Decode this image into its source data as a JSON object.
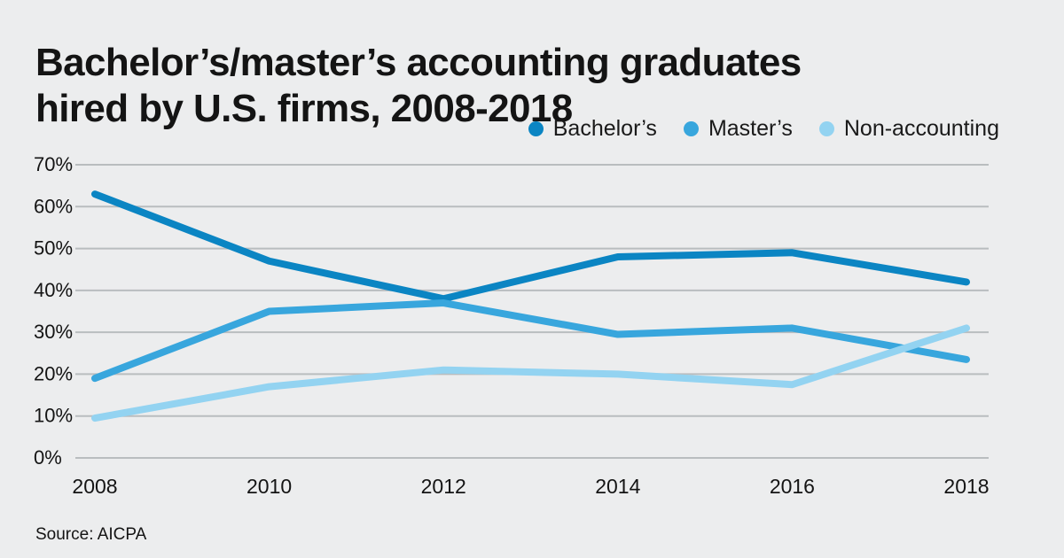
{
  "page": {
    "background": "#ecedee"
  },
  "chart_data": {
    "type": "line",
    "title": "Bachelor’s/master’s accounting graduates hired by U.S. firms, 2008-2018",
    "title_lines": {
      "0": "Bachelor’s/master’s accounting graduates",
      "1": "hired by U.S. firms, 2008-2018"
    },
    "x": [
      2008,
      2010,
      2012,
      2014,
      2016,
      2018
    ],
    "x_tick_labels": [
      "2008",
      "2010",
      "2012",
      "2014",
      "2016",
      "2018"
    ],
    "y_ticks": [
      0,
      10,
      20,
      30,
      40,
      50,
      60,
      70
    ],
    "y_tick_labels": [
      "0%",
      "10%",
      "20%",
      "30%",
      "40%",
      "50%",
      "60%",
      "70%"
    ],
    "ylim": [
      0,
      70
    ],
    "grid": "horizontal",
    "legend_position": "top-right",
    "series": [
      {
        "name": "Bachelor’s",
        "color": "#0b85c3",
        "values": [
          63,
          47,
          38,
          48,
          49,
          42
        ]
      },
      {
        "name": "Master’s",
        "color": "#38a6dd",
        "values": [
          19,
          35,
          37,
          29.5,
          31,
          23.5
        ]
      },
      {
        "name": "Non-accounting",
        "color": "#93d3f1",
        "values": [
          9.5,
          17,
          21,
          20,
          17.5,
          31
        ]
      }
    ],
    "gridline_color": "#b9bdbf",
    "source": "Source: AICPA"
  }
}
